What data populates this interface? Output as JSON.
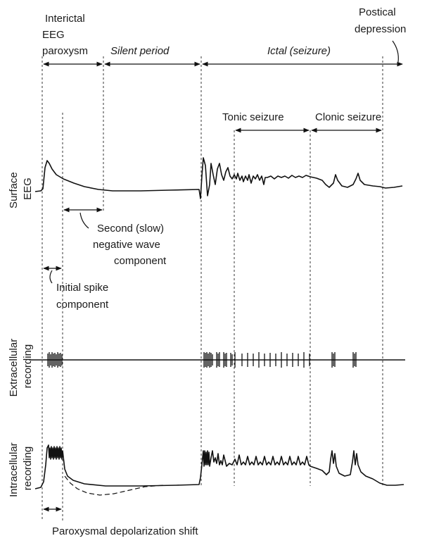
{
  "periods": {
    "interictal": [
      "Interictal",
      "EEG",
      "paroxysm"
    ],
    "silent": "Silent period",
    "ictal": "Ictal (seizure)",
    "postictal": [
      "Postical",
      "depression"
    ]
  },
  "seizure_phases": {
    "tonic": "Tonic seizure",
    "clonic": "Clonic seizure"
  },
  "rows": {
    "surface": [
      "Surface",
      "EEG"
    ],
    "extracellular": [
      "Extracellular",
      "recording"
    ],
    "intracellular": [
      "Intracellular",
      "recording"
    ]
  },
  "annotations": {
    "second_wave": [
      "Second (slow)",
      "negative wave",
      "component"
    ],
    "initial_spike": [
      "Initial spike",
      "component"
    ],
    "pds": "Paroxysmal depolarization shift"
  }
}
